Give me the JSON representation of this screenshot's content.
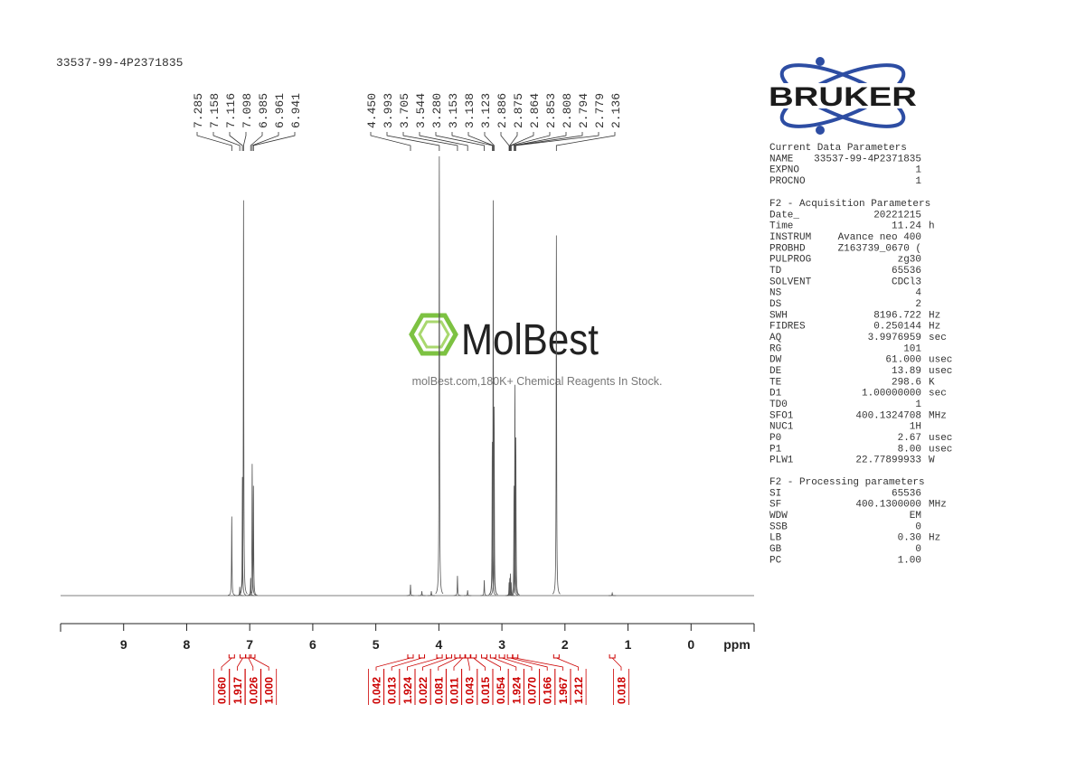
{
  "title": "33537-99-4P2371835",
  "chart_data": {
    "type": "nmr",
    "xlim": [
      10,
      -1
    ],
    "xticks": [
      9,
      8,
      7,
      6,
      5,
      4,
      3,
      2,
      1,
      0
    ],
    "xlabel": "ppm",
    "color": "#555555",
    "peaks": {
      "x": [
        7.285,
        7.158,
        7.116,
        7.098,
        6.985,
        6.961,
        6.941,
        4.45,
        4.27,
        4.12,
        3.993,
        3.705,
        3.544,
        3.28,
        3.153,
        3.138,
        3.123,
        2.886,
        2.875,
        2.864,
        2.853,
        2.808,
        2.794,
        2.779,
        2.136,
        1.25
      ],
      "values": [
        18,
        2,
        27,
        90,
        4,
        30,
        25,
        2.5,
        1,
        1,
        100,
        4.5,
        1.2,
        3.5,
        35,
        90,
        43,
        3,
        4,
        5,
        3,
        25,
        48,
        36,
        82,
        0.6
      ]
    },
    "peak_labels": [
      7.285,
      7.158,
      7.116,
      7.098,
      6.985,
      6.961,
      6.941,
      {
        "value": 4.45,
        "label": "4.450"
      },
      3.993,
      3.705,
      3.544,
      {
        "value": 3.28,
        "label": "3.280"
      },
      3.153,
      3.138,
      3.123,
      2.886,
      2.875,
      2.864,
      2.853,
      2.808,
      2.794,
      2.779,
      2.136
    ],
    "integrals": {
      "color": "#cc0000",
      "x": [
        7.285,
        7.11,
        7.02,
        6.96,
        4.45,
        4.27,
        3.99,
        3.84,
        3.705,
        3.62,
        3.544,
        3.45,
        3.28,
        3.14,
        3.0,
        2.87,
        2.79,
        2.136,
        1.25
      ],
      "values": [
        0.06,
        1.917,
        0.026,
        1.0,
        0.042,
        0.013,
        1.924,
        0.022,
        0.081,
        0.011,
        0.043,
        0.015,
        0.054,
        1.924,
        0.07,
        0.166,
        1.967,
        1.212,
        0.018
      ],
      "value_labels": [
        "0.060",
        "1.917",
        "0.026",
        "1.000",
        "0.042",
        "0.013",
        "1.924",
        "0.022",
        "0.081",
        "0.011",
        "0.043",
        "0.015",
        "0.054",
        "1.924",
        "0.070",
        "0.166",
        "1.967",
        "1.212",
        "0.018"
      ]
    }
  },
  "watermark": {
    "brand": "MolBest",
    "tagline": "molBest.com,180K+ Chemical Reagents In Stock."
  },
  "logo": "BRUKER",
  "parameters": [
    {
      "heading": "Current Data Parameters",
      "rows": [
        [
          "NAME",
          "33537-99-4P2371835"
        ],
        [
          "EXPNO",
          "1"
        ],
        [
          "PROCNO",
          "1"
        ]
      ]
    },
    {
      "heading": "F2 - Acquisition Parameters",
      "rows": [
        [
          "Date_",
          "20221215"
        ],
        [
          "Time",
          "11.24",
          "h"
        ],
        [
          "INSTRUM",
          "Avance neo 400"
        ],
        [
          "PROBHD",
          "Z163739_0670 ("
        ],
        [
          "PULPROG",
          "zg30"
        ],
        [
          "TD",
          "65536"
        ],
        [
          "SOLVENT",
          "CDCl3"
        ],
        [
          "NS",
          "4"
        ],
        [
          "DS",
          "2"
        ],
        [
          "SWH",
          "8196.722",
          "Hz"
        ],
        [
          "FIDRES",
          "0.250144",
          "Hz"
        ],
        [
          "AQ",
          "3.9976959",
          "sec"
        ],
        [
          "RG",
          "101"
        ],
        [
          "DW",
          "61.000",
          "usec"
        ],
        [
          "DE",
          "13.89",
          "usec"
        ],
        [
          "TE",
          "298.6",
          "K"
        ],
        [
          "D1",
          "1.00000000",
          "sec"
        ],
        [
          "TD0",
          "1"
        ],
        [
          "SFO1",
          "400.1324708",
          "MHz"
        ],
        [
          "NUC1",
          "1H"
        ],
        [
          "P0",
          "2.67",
          "usec"
        ],
        [
          "P1",
          "8.00",
          "usec"
        ],
        [
          "PLW1",
          "22.77899933",
          "W"
        ]
      ]
    },
    {
      "heading": "F2 - Processing parameters",
      "rows": [
        [
          "SI",
          "65536"
        ],
        [
          "SF",
          "400.1300000",
          "MHz"
        ],
        [
          "WDW",
          "EM"
        ],
        [
          "SSB",
          "0"
        ],
        [
          "LB",
          "0.30",
          "Hz"
        ],
        [
          "GB",
          "0"
        ],
        [
          "PC",
          "1.00"
        ]
      ]
    }
  ]
}
